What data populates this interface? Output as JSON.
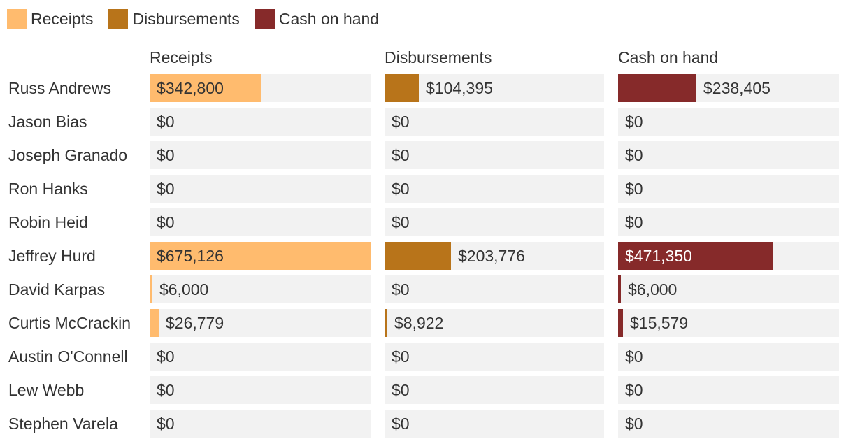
{
  "chart_data": {
    "type": "bar",
    "orientation": "horizontal",
    "layout": "small-multiples",
    "title": "",
    "legend_position": "top-left",
    "legend": [
      {
        "name": "Receipts",
        "color": "#ffbb6e"
      },
      {
        "name": "Disbursements",
        "color": "#b8741a"
      },
      {
        "name": "Cash on hand",
        "color": "#862a2a"
      }
    ],
    "categories": [
      "Russ Andrews",
      "Jason Bias",
      "Joseph Granado",
      "Ron Hanks",
      "Robin Heid",
      "Jeffrey Hurd",
      "David Karpas",
      "Curtis McCrackin",
      "Austin O'Connell",
      "Lew Webb",
      "Stephen Varela"
    ],
    "series": [
      {
        "name": "Receipts",
        "color": "#ffbb6e",
        "label_on_bar_color": "#333333",
        "values": [
          342800,
          0,
          0,
          0,
          0,
          675126,
          6000,
          26779,
          0,
          0,
          0
        ],
        "labels": [
          "$342,800",
          "$0",
          "$0",
          "$0",
          "$0",
          "$675,126",
          "$6,000",
          "$26,779",
          "$0",
          "$0",
          "$0"
        ]
      },
      {
        "name": "Disbursements",
        "color": "#b8741a",
        "label_on_bar_color": "#ffffff",
        "values": [
          104395,
          0,
          0,
          0,
          0,
          203776,
          0,
          8922,
          0,
          0,
          0
        ],
        "labels": [
          "$104,395",
          "$0",
          "$0",
          "$0",
          "$0",
          "$203,776",
          "$0",
          "$8,922",
          "$0",
          "$0",
          "$0"
        ]
      },
      {
        "name": "Cash on hand",
        "color": "#862a2a",
        "label_on_bar_color": "#ffffff",
        "values": [
          238405,
          0,
          0,
          0,
          0,
          471350,
          6000,
          15579,
          0,
          0,
          0
        ],
        "labels": [
          "$238,405",
          "$0",
          "$0",
          "$0",
          "$0",
          "$471,350",
          "$6,000",
          "$15,579",
          "$0",
          "$0",
          "$0"
        ]
      }
    ],
    "xlim": [
      0,
      675126
    ]
  }
}
